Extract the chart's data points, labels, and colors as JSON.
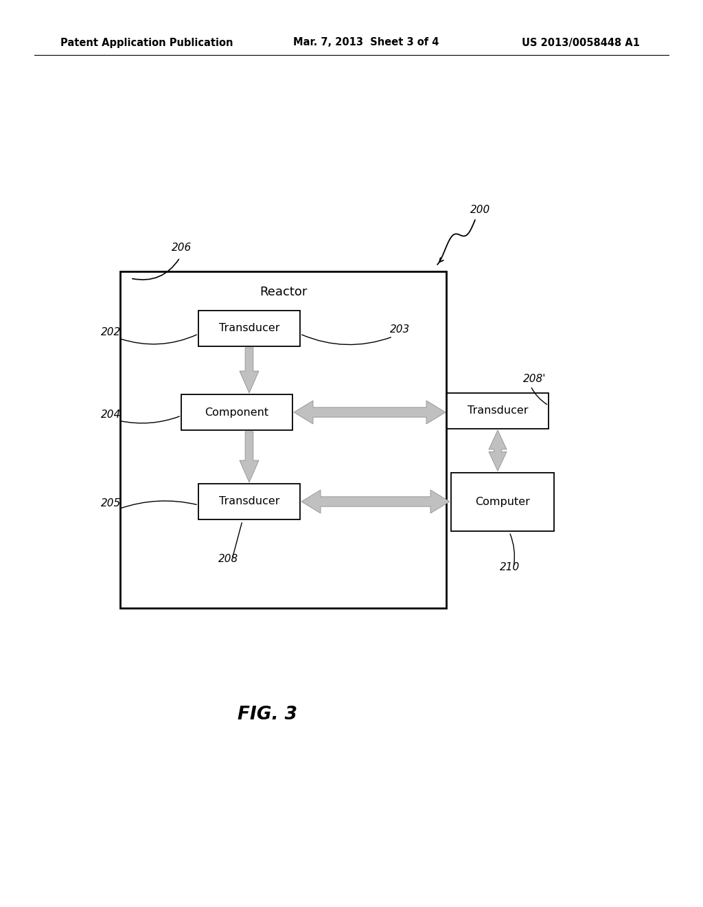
{
  "bg_color": "#ffffff",
  "header_left": "Patent Application Publication",
  "header_mid": "Mar. 7, 2013  Sheet 3 of 4",
  "header_right": "US 2013/0058448 A1",
  "header_fontsize": 10.5,
  "fig_label": "FIG. 3",
  "fig_label_fontsize": 19,
  "arrow_color": "#c0c0c0",
  "arrow_edge": "#909090"
}
